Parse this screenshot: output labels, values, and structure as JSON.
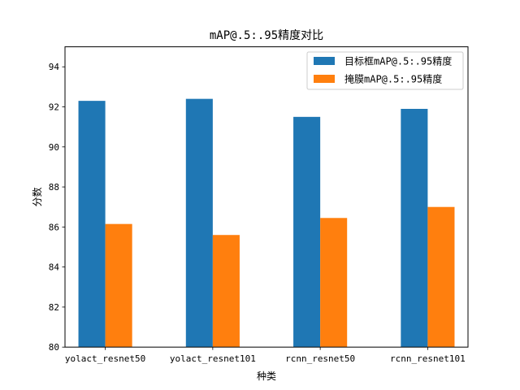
{
  "chart_data": {
    "type": "bar",
    "title": "mAP@.5:.95精度对比",
    "xlabel": "种类",
    "ylabel": "分数",
    "categories": [
      "yolact_resnet50",
      "yolact_resnet101",
      "rcnn_resnet50",
      "rcnn_resnet101"
    ],
    "series": [
      {
        "name": "目标框mAP@.5:.95精度",
        "color": "#1f77b4",
        "values": [
          92.3,
          92.4,
          91.5,
          91.9
        ]
      },
      {
        "name": "掩膜mAP@.5:.95精度",
        "color": "#ff7f0e",
        "values": [
          86.15,
          85.6,
          86.45,
          87.0
        ]
      }
    ],
    "ylim": [
      80,
      95
    ],
    "yticks": [
      "80",
      "82",
      "84",
      "86",
      "88",
      "90",
      "92",
      "94"
    ],
    "grid": false,
    "legend_position": "top-right"
  }
}
